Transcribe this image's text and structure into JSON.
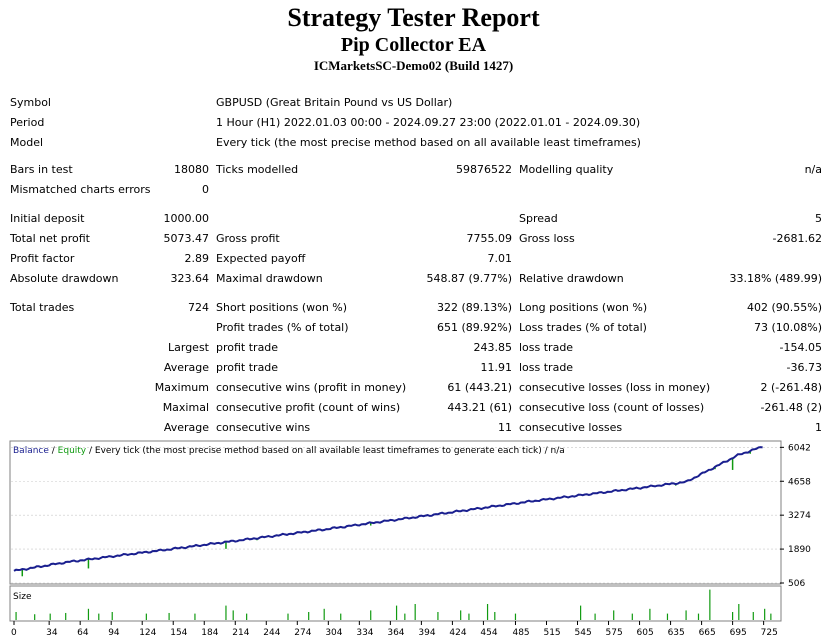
{
  "header": {
    "title": "Strategy Tester Report",
    "ea_name": "Pip Collector EA",
    "server": "ICMarketsSC-Demo02 (Build 1427)"
  },
  "info": {
    "symbol_label": "Symbol",
    "symbol_value": "GBPUSD (Great Britain Pound vs US Dollar)",
    "period_label": "Period",
    "period_value": "1 Hour (H1) 2022.01.03 00:00 - 2024.09.27 23:00 (2022.01.01 - 2024.09.30)",
    "model_label": "Model",
    "model_value": "Every tick (the most precise method based on all available least timeframes)"
  },
  "stats": {
    "bars_label": "Bars in test",
    "bars_value": "18080",
    "ticks_label": "Ticks modelled",
    "ticks_value": "59876522",
    "quality_label": "Modelling quality",
    "quality_value": "n/a",
    "mismatch_label": "Mismatched charts errors",
    "mismatch_value": "0",
    "deposit_label": "Initial deposit",
    "deposit_value": "1000.00",
    "spread_label": "Spread",
    "spread_value": "5",
    "net_profit_label": "Total net profit",
    "net_profit_value": "5073.47",
    "gross_profit_label": "Gross profit",
    "gross_profit_value": "7755.09",
    "gross_loss_label": "Gross loss",
    "gross_loss_value": "-2681.62",
    "profit_factor_label": "Profit factor",
    "profit_factor_value": "2.89",
    "expected_payoff_label": "Expected payoff",
    "expected_payoff_value": "7.01",
    "abs_dd_label": "Absolute drawdown",
    "abs_dd_value": "323.64",
    "max_dd_label": "Maximal drawdown",
    "max_dd_value": "548.87 (9.77%)",
    "rel_dd_label": "Relative drawdown",
    "rel_dd_value": "33.18% (489.99)",
    "total_trades_label": "Total trades",
    "total_trades_value": "724",
    "short_label": "Short positions (won %)",
    "short_value": "322 (89.13%)",
    "long_label": "Long positions (won %)",
    "long_value": "402 (90.55%)",
    "profit_trades_label": "Profit trades (% of total)",
    "profit_trades_value": "651 (89.92%)",
    "loss_trades_label": "Loss trades (% of total)",
    "loss_trades_value": "73 (10.08%)",
    "largest_label": "Largest",
    "largest_profit_label": "profit trade",
    "largest_profit_value": "243.85",
    "largest_loss_label": "loss trade",
    "largest_loss_value": "-154.05",
    "average_label": "Average",
    "average_profit_label": "profit trade",
    "average_profit_value": "11.91",
    "average_loss_label": "loss trade",
    "average_loss_value": "-36.73",
    "maximum_label": "Maximum",
    "max_cons_wins_label": "consecutive wins (profit in money)",
    "max_cons_wins_value": "61 (443.21)",
    "max_cons_losses_label": "consecutive losses (loss in money)",
    "max_cons_losses_value": "2 (-261.48)",
    "maximal_label": "Maximal",
    "maximal_cons_profit_label": "consecutive profit (count of wins)",
    "maximal_cons_profit_value": "443.21 (61)",
    "maximal_cons_loss_label": "consecutive loss (count of losses)",
    "maximal_cons_loss_value": "-261.48 (2)",
    "average2_label": "Average",
    "avg_cons_wins_label": "consecutive wins",
    "avg_cons_wins_value": "11",
    "avg_cons_losses_label": "consecutive losses",
    "avg_cons_losses_value": "1"
  },
  "chart_data": {
    "type": "line",
    "legend": {
      "balance": "Balance",
      "sep1": " / ",
      "equity": "Equity",
      "sep2": " / ",
      "rest": "Every tick (the most precise method based on all available least timeframes to generate each tick) / n/a"
    },
    "colors": {
      "balance": "#1a1f8f",
      "equity": "#109a10",
      "size": "#109a10",
      "grid": "#c8c8c8",
      "frame": "#808080"
    },
    "y_ticks": [
      506,
      1890,
      3274,
      4658,
      6042
    ],
    "ylim": [
      506,
      6260
    ],
    "x_ticks": [
      0,
      34,
      64,
      94,
      124,
      154,
      184,
      214,
      244,
      274,
      304,
      334,
      364,
      394,
      424,
      454,
      485,
      515,
      545,
      575,
      605,
      635,
      665,
      695,
      725
    ],
    "xlim": [
      0,
      736
    ],
    "size_label": "Size",
    "balance": [
      {
        "x": 0,
        "y": 1000
      },
      {
        "x": 50,
        "y": 1350
      },
      {
        "x": 100,
        "y": 1620
      },
      {
        "x": 150,
        "y": 1880
      },
      {
        "x": 200,
        "y": 2150
      },
      {
        "x": 250,
        "y": 2420
      },
      {
        "x": 300,
        "y": 2690
      },
      {
        "x": 350,
        "y": 2980
      },
      {
        "x": 400,
        "y": 3260
      },
      {
        "x": 450,
        "y": 3550
      },
      {
        "x": 500,
        "y": 3840
      },
      {
        "x": 550,
        "y": 4100
      },
      {
        "x": 600,
        "y": 4360
      },
      {
        "x": 650,
        "y": 4630
      },
      {
        "x": 700,
        "y": 5720
      },
      {
        "x": 724,
        "y": 6073
      }
    ],
    "equity_dips": [
      {
        "x": 8,
        "y": 780
      },
      {
        "x": 72,
        "y": 1100
      },
      {
        "x": 205,
        "y": 1900
      },
      {
        "x": 235,
        "y": 2250
      },
      {
        "x": 345,
        "y": 2850
      },
      {
        "x": 520,
        "y": 3920
      },
      {
        "x": 640,
        "y": 4480
      },
      {
        "x": 678,
        "y": 5150
      },
      {
        "x": 695,
        "y": 5120
      },
      {
        "x": 712,
        "y": 5780
      }
    ],
    "size_spikes": [
      {
        "x": 2,
        "y": 0.25
      },
      {
        "x": 20,
        "y": 0.18
      },
      {
        "x": 35,
        "y": 0.2
      },
      {
        "x": 50,
        "y": 0.22
      },
      {
        "x": 72,
        "y": 0.35
      },
      {
        "x": 82,
        "y": 0.2
      },
      {
        "x": 95,
        "y": 0.25
      },
      {
        "x": 128,
        "y": 0.2
      },
      {
        "x": 150,
        "y": 0.22
      },
      {
        "x": 175,
        "y": 0.2
      },
      {
        "x": 205,
        "y": 0.45
      },
      {
        "x": 212,
        "y": 0.3
      },
      {
        "x": 225,
        "y": 0.2
      },
      {
        "x": 265,
        "y": 0.2
      },
      {
        "x": 285,
        "y": 0.25
      },
      {
        "x": 300,
        "y": 0.35
      },
      {
        "x": 316,
        "y": 0.2
      },
      {
        "x": 345,
        "y": 0.3
      },
      {
        "x": 370,
        "y": 0.45
      },
      {
        "x": 378,
        "y": 0.2
      },
      {
        "x": 388,
        "y": 0.5
      },
      {
        "x": 410,
        "y": 0.25
      },
      {
        "x": 432,
        "y": 0.3
      },
      {
        "x": 440,
        "y": 0.2
      },
      {
        "x": 458,
        "y": 0.5
      },
      {
        "x": 465,
        "y": 0.25
      },
      {
        "x": 485,
        "y": 0.2
      },
      {
        "x": 548,
        "y": 0.45
      },
      {
        "x": 562,
        "y": 0.2
      },
      {
        "x": 580,
        "y": 0.3
      },
      {
        "x": 598,
        "y": 0.2
      },
      {
        "x": 615,
        "y": 0.35
      },
      {
        "x": 632,
        "y": 0.2
      },
      {
        "x": 650,
        "y": 0.3
      },
      {
        "x": 662,
        "y": 0.2
      },
      {
        "x": 673,
        "y": 0.95
      },
      {
        "x": 695,
        "y": 0.25
      },
      {
        "x": 701,
        "y": 0.5
      },
      {
        "x": 715,
        "y": 0.25
      },
      {
        "x": 726,
        "y": 0.35
      },
      {
        "x": 732,
        "y": 0.2
      }
    ]
  }
}
